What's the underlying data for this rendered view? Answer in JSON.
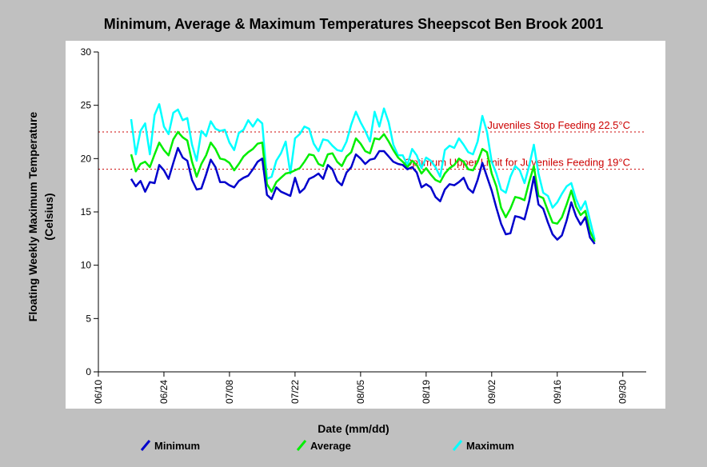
{
  "chart_data": {
    "type": "line",
    "title": "Minimum, Average & Maximum Temperatures Sheepscot Ben Brook 2001",
    "xlabel": "Date (mm/dd)",
    "ylabel_line1": "Floating Weekly Maximum Temperature",
    "ylabel_line2": "(Celsius)",
    "ylim": [
      0,
      30
    ],
    "yticks": [
      0,
      5,
      10,
      15,
      20,
      25,
      30
    ],
    "xlim": [
      "06/10",
      "10/05"
    ],
    "xticks": [
      "06/10",
      "06/24",
      "07/08",
      "07/22",
      "08/05",
      "08/19",
      "09/02",
      "09/16",
      "09/30"
    ],
    "grid": false,
    "legend_position": "bottom",
    "reference_lines": [
      {
        "label": "Juveniles Stop Feeding 22.5°C",
        "y": 22.5,
        "color": "#cc0000"
      },
      {
        "label": "Optimum Upper Limit for Juveniles Feeding 19°C",
        "y": 19,
        "color": "#cc0000"
      }
    ],
    "x_start": "06/17",
    "series": [
      {
        "name": "Minimum",
        "color": "#0000cc",
        "values": [
          18.1,
          17.4,
          17.9,
          16.9,
          17.8,
          17.7,
          19.4,
          18.9,
          18.1,
          19.6,
          21.0,
          20.1,
          19.8,
          18.0,
          17.1,
          17.2,
          18.5,
          19.9,
          19.2,
          17.8,
          17.8,
          17.5,
          17.3,
          17.9,
          18.2,
          18.4,
          19.0,
          19.7,
          20.0,
          16.6,
          16.2,
          17.3,
          16.9,
          16.7,
          16.5,
          18.2,
          16.8,
          17.2,
          18.1,
          18.3,
          18.6,
          18.1,
          19.4,
          19.0,
          17.9,
          17.5,
          18.7,
          19.2,
          20.4,
          20.0,
          19.5,
          19.9,
          20.0,
          20.7,
          20.7,
          20.2,
          19.7,
          19.5,
          19.4,
          19.0,
          19.2,
          18.7,
          17.3,
          17.6,
          17.3,
          16.4,
          16.0,
          17.1,
          17.6,
          17.5,
          17.8,
          18.2,
          17.2,
          16.8,
          18.0,
          19.6,
          18.3,
          17.0,
          15.4,
          13.9,
          12.9,
          13.0,
          14.6,
          14.5,
          14.3,
          16.0,
          18.3,
          15.7,
          15.3,
          14.0,
          12.9,
          12.4,
          12.8,
          14.2,
          15.9,
          14.6,
          13.8,
          14.5,
          12.6,
          12.0
        ]
      },
      {
        "name": "Average",
        "color": "#00ee00",
        "values": [
          20.4,
          18.8,
          19.5,
          19.7,
          19.2,
          20.4,
          21.5,
          20.8,
          20.3,
          21.8,
          22.5,
          22.0,
          21.7,
          19.7,
          18.3,
          19.5,
          20.3,
          21.5,
          20.9,
          20.0,
          19.9,
          19.6,
          18.9,
          19.5,
          20.2,
          20.6,
          20.9,
          21.4,
          21.5,
          17.6,
          16.9,
          17.8,
          18.2,
          18.6,
          18.7,
          18.9,
          19.1,
          19.7,
          20.4,
          20.3,
          19.5,
          19.3,
          20.4,
          20.5,
          19.7,
          19.3,
          20.2,
          20.6,
          21.9,
          21.4,
          20.7,
          20.5,
          21.9,
          21.8,
          22.3,
          21.6,
          20.8,
          20.1,
          19.7,
          19.2,
          19.8,
          19.4,
          18.6,
          19.1,
          18.5,
          18.0,
          17.8,
          18.6,
          19.1,
          19.4,
          20.0,
          19.7,
          19.0,
          18.9,
          19.7,
          20.9,
          20.6,
          18.6,
          17.4,
          15.4,
          14.5,
          15.3,
          16.4,
          16.3,
          16.1,
          17.8,
          19.3,
          16.5,
          16.3,
          15.1,
          14.0,
          13.9,
          14.5,
          15.7,
          17.0,
          15.5,
          14.7,
          15.1,
          13.2,
          12.2
        ]
      },
      {
        "name": "Maximum",
        "color": "#00ffff",
        "values": [
          23.7,
          20.4,
          22.6,
          23.3,
          20.4,
          24.1,
          25.1,
          23.0,
          22.3,
          24.3,
          24.6,
          23.6,
          23.8,
          21.3,
          19.8,
          22.6,
          22.1,
          23.5,
          22.8,
          22.6,
          22.7,
          21.5,
          20.8,
          22.4,
          22.7,
          23.6,
          23.0,
          23.7,
          23.3,
          18.1,
          18.3,
          19.8,
          20.5,
          21.6,
          18.6,
          21.9,
          22.3,
          23.0,
          22.8,
          21.4,
          20.7,
          21.8,
          21.7,
          21.2,
          20.8,
          20.7,
          21.6,
          23.2,
          24.4,
          23.4,
          22.6,
          21.6,
          24.4,
          23.0,
          24.7,
          23.4,
          21.3,
          20.3,
          20.3,
          19.4,
          20.9,
          20.3,
          19.1,
          20.1,
          19.8,
          19.2,
          18.3,
          20.8,
          21.2,
          21.0,
          21.9,
          21.3,
          20.6,
          20.4,
          21.6,
          24.0,
          22.5,
          19.7,
          18.6,
          17.1,
          16.8,
          18.3,
          19.3,
          18.9,
          17.7,
          19.3,
          21.3,
          18.6,
          16.8,
          16.5,
          15.4,
          15.9,
          16.7,
          17.4,
          17.7,
          16.2,
          15.2,
          16.0,
          14.2,
          12.4
        ]
      }
    ]
  }
}
